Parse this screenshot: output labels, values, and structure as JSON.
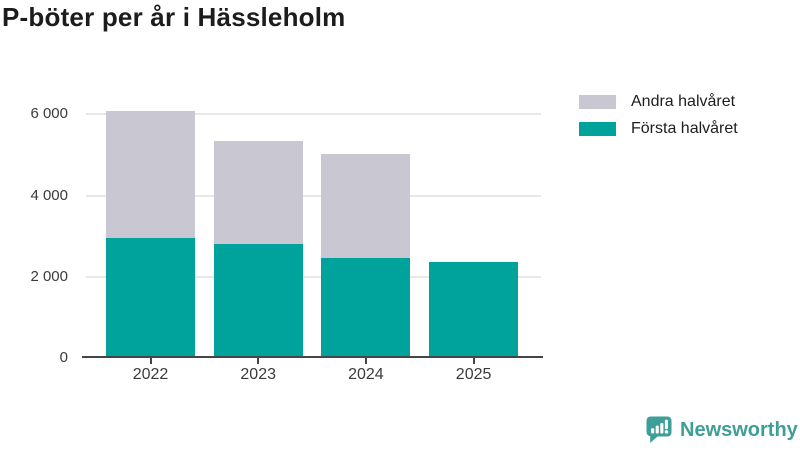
{
  "title": "P-böter per år i Hässleholm",
  "legend": {
    "items": [
      {
        "label": "Andra halvåret",
        "color": "#c9c7d1"
      },
      {
        "label": "Första halvåret",
        "color": "#00a39b"
      }
    ]
  },
  "chart_data": {
    "type": "bar",
    "stacked": true,
    "title": "P-böter per år i Hässleholm",
    "categories": [
      "2022",
      "2023",
      "2024",
      "2025"
    ],
    "series": [
      {
        "name": "Första halvåret",
        "color": "#00a39b",
        "values": [
          2950,
          2800,
          2460,
          2370
        ]
      },
      {
        "name": "Andra halvåret",
        "color": "#c9c7d1",
        "values": [
          3130,
          2540,
          2560,
          0
        ]
      }
    ],
    "stack_totals": [
      6080,
      5340,
      5020,
      2370
    ],
    "xlabel": "",
    "ylabel": "",
    "ylim": [
      0,
      6600
    ],
    "yticks": [
      {
        "value": 0,
        "label": "0"
      },
      {
        "value": 2000,
        "label": "2 000"
      },
      {
        "value": 4000,
        "label": "4 000"
      },
      {
        "value": 6000,
        "label": "6 000"
      }
    ],
    "grid": true,
    "legend_position": "top-right"
  },
  "branding": {
    "logo_text": "Newsworthy",
    "logo_color": "#3e9e98",
    "logo_icon": "bar-chart-speech-bubble-icon"
  }
}
